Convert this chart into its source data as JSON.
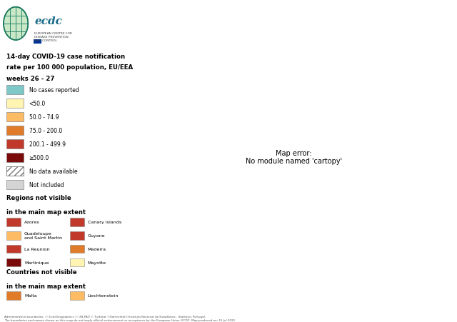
{
  "title_line1": "14-day COVID-19 case notification",
  "title_line2": "rate per 100 000 population, EU/EEA",
  "title_line3": "weeks 26 - 27",
  "footer_line1": "Administrative boundaries: © EuroGeographics © UN-FAO © Turkstat ©Kartverket©Instituto Nacional de Estadística - Statistics Portugal.",
  "footer_line2": "The boundaries and names shown on this map do not imply official endorsement or acceptance by the European Union. ECDC. Map produced on: 15 Jul 2021",
  "legend_categories": [
    {
      "label": "No cases reported",
      "color": "#7EC8C8"
    },
    {
      "label": "<50.0",
      "color": "#FFF4B2"
    },
    {
      "label": "50.0 - 74.9",
      "color": "#FDBB63"
    },
    {
      "label": "75.0 - 200.0",
      "color": "#E07B2A"
    },
    {
      "label": "200.1 - 499.9",
      "color": "#C0392B"
    },
    {
      "label": "≥500.0",
      "color": "#7B0A0A"
    },
    {
      "label": "No data available",
      "color": "hatch"
    },
    {
      "label": "Not included",
      "color": "#D4D4D4"
    }
  ],
  "regions_not_visible": [
    {
      "label": "Azores",
      "color": "#C0392B",
      "col": 0
    },
    {
      "label": "Canary Islands",
      "color": "#C0392B",
      "col": 1
    },
    {
      "label": "Guadeloupe\nand Saint Martin",
      "color": "#FDBB63",
      "col": 0
    },
    {
      "label": "Guyane",
      "color": "#C0392B",
      "col": 1
    },
    {
      "label": "La Reunion",
      "color": "#C0392B",
      "col": 0
    },
    {
      "label": "Madeira",
      "color": "#E07B2A",
      "col": 1
    },
    {
      "label": "Martinique",
      "color": "#7B0A0A",
      "col": 0
    },
    {
      "label": "Mayotte",
      "color": "#FFF4B2",
      "col": 1
    }
  ],
  "countries_not_visible": [
    {
      "label": "Malta",
      "color": "#E07B2A"
    },
    {
      "label": "Liechtenstein",
      "color": "#FDBB63"
    }
  ],
  "map_ocean_color": "#FFFFFF",
  "map_bg_color": "#FFFFFF",
  "not_included_color": "#D4D4D4",
  "border_color": "#A08060",
  "border_lw": 0.35,
  "country_colors": {
    "Portugal": "#7B0A0A",
    "Spain": "#C0392B",
    "France": "#E07B2A",
    "Ireland": "#E07B2A",
    "Belgium": "#C0392B",
    "Netherlands": "#7B0A0A",
    "Luxembourg": "#E07B2A",
    "Germany": "#FFF4B2",
    "Denmark": "#E07B2A",
    "Norway": "#FDBB63",
    "Sweden": "#FFF4B2",
    "Finland": "#FFF4B2",
    "Iceland": "#FFF4B2",
    "Switzerland": "#FDBB63",
    "Austria": "#FFF4B2",
    "Italy": "#FFF4B2",
    "Greece": "#E07B2A",
    "Cyprus": "#C0392B",
    "Poland": "#FFF4B2",
    "Czechia": "#FFF4B2",
    "Czech Republic": "#FFF4B2",
    "Slovakia": "#FFF4B2",
    "Hungary": "#FFF4B2",
    "Romania": "#FFF4B2",
    "Bulgaria": "#FFF4B2",
    "Croatia": "#FFF4B2",
    "Slovenia": "#FFF4B2",
    "Estonia": "#FFF4B2",
    "Latvia": "#FFF4B2",
    "Lithuania": "#FFF4B2",
    "Malta": "#E07B2A",
    "Liechtenstein": "#FDBB63",
    "United Kingdom": "#D4D4D4",
    "Belarus": "#D4D4D4",
    "Ukraine": "#D4D4D4",
    "Moldova": "#D4D4D4",
    "Serbia": "#D4D4D4",
    "Kosovo": "#D4D4D4",
    "Albania": "#D4D4D4",
    "North Macedonia": "#D4D4D4",
    "Montenegro": "#D4D4D4",
    "Bosnia and Herzegovina": "#D4D4D4",
    "Turkey": "#D4D4D4",
    "Russia": "#D4D4D4"
  }
}
